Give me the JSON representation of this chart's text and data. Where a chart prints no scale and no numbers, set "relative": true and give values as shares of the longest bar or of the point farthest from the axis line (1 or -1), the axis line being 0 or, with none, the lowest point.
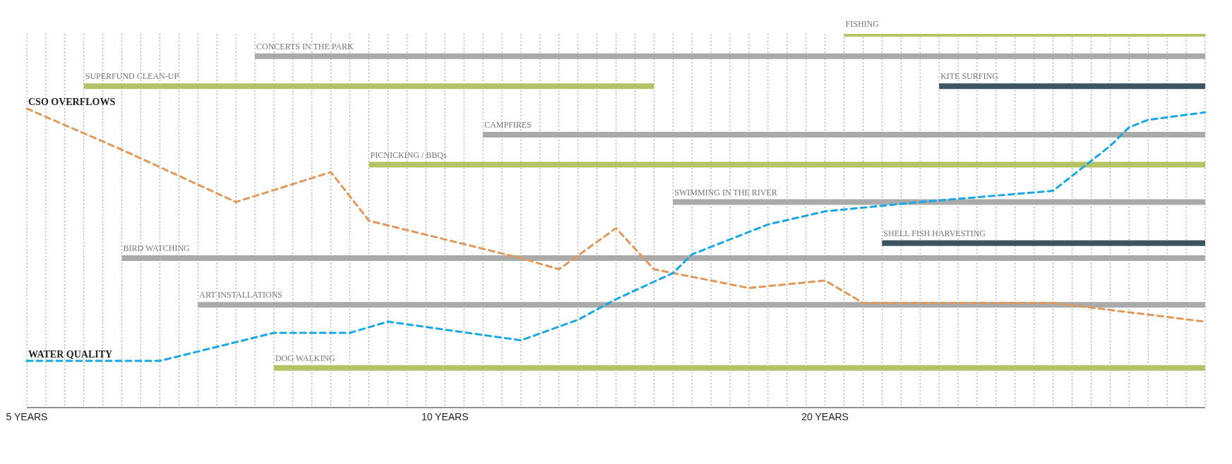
{
  "chart_data": {
    "type": "line",
    "relative": true,
    "grid": "x",
    "legend": false,
    "marker": "none",
    "tick_labels": "x",
    "categories": [
      "5 YEARS",
      null,
      null,
      null,
      null,
      null,
      null,
      null,
      null,
      null,
      null,
      null,
      null,
      null,
      null,
      null,
      null,
      null,
      null,
      null,
      null,
      null,
      "10 YEARS",
      null,
      null,
      null,
      null,
      null,
      null,
      null,
      null,
      null,
      null,
      null,
      null,
      null,
      null,
      null,
      null,
      null,
      null,
      null,
      "20 YEARS",
      null,
      null,
      null,
      null,
      null,
      null,
      null,
      null,
      null,
      null,
      null,
      null,
      null,
      null,
      null,
      null,
      null,
      null,
      null,
      null
    ],
    "series": [
      {
        "name": "FISHING",
        "color": "#b5c266",
        "line_style": "solid",
        "values": [
          null,
          null,
          null,
          null,
          null,
          null,
          null,
          null,
          null,
          null,
          null,
          null,
          null,
          null,
          null,
          null,
          null,
          null,
          null,
          null,
          null,
          null,
          null,
          null,
          null,
          null,
          null,
          null,
          null,
          null,
          null,
          null,
          null,
          null,
          null,
          null,
          null,
          null,
          null,
          null,
          null,
          null,
          null,
          1.0,
          null,
          null,
          null,
          null,
          null,
          null,
          null,
          null,
          null,
          null,
          null,
          null,
          null,
          null,
          null,
          null,
          null,
          null,
          1.0
        ]
      },
      {
        "name": "CONCERTS IN THE PARK",
        "color": "#aaaaaa",
        "line_style": "solid",
        "values": [
          null,
          null,
          null,
          null,
          null,
          null,
          null,
          null,
          null,
          null,
          null,
          null,
          0.94,
          null,
          null,
          null,
          null,
          null,
          null,
          null,
          null,
          null,
          null,
          null,
          null,
          null,
          null,
          null,
          null,
          null,
          null,
          null,
          null,
          null,
          null,
          null,
          null,
          null,
          null,
          null,
          null,
          null,
          null,
          null,
          null,
          null,
          null,
          null,
          null,
          null,
          null,
          null,
          null,
          null,
          null,
          null,
          null,
          null,
          null,
          null,
          null,
          null,
          0.94
        ]
      },
      {
        "name": "SUPERFUND CLEAN-UP",
        "color": "#b5c266",
        "line_style": "solid",
        "values": [
          null,
          null,
          null,
          0.86,
          null,
          null,
          null,
          null,
          null,
          null,
          null,
          null,
          null,
          null,
          null,
          null,
          null,
          null,
          null,
          null,
          null,
          null,
          null,
          null,
          null,
          null,
          null,
          null,
          null,
          null,
          null,
          null,
          null,
          0.86,
          null,
          null,
          null,
          null,
          null,
          null,
          null,
          null,
          null,
          null,
          null,
          null,
          null,
          null,
          null,
          null,
          null,
          null,
          null,
          null,
          null,
          null,
          null,
          null,
          null,
          null,
          null,
          null,
          null
        ]
      },
      {
        "name": "KITE SURFING",
        "color": "#3d5560",
        "line_style": "solid",
        "values": [
          null,
          null,
          null,
          null,
          null,
          null,
          null,
          null,
          null,
          null,
          null,
          null,
          null,
          null,
          null,
          null,
          null,
          null,
          null,
          null,
          null,
          null,
          null,
          null,
          null,
          null,
          null,
          null,
          null,
          null,
          null,
          null,
          null,
          null,
          null,
          null,
          null,
          null,
          null,
          null,
          null,
          null,
          null,
          null,
          null,
          null,
          null,
          null,
          0.86,
          null,
          null,
          null,
          null,
          null,
          null,
          null,
          null,
          null,
          null,
          null,
          null,
          null,
          0.86
        ]
      },
      {
        "name": "CAMPFIRES",
        "color": "#aaaaaa",
        "line_style": "solid",
        "values": [
          null,
          null,
          null,
          null,
          null,
          null,
          null,
          null,
          null,
          null,
          null,
          null,
          null,
          null,
          null,
          null,
          null,
          null,
          null,
          null,
          null,
          null,
          null,
          null,
          0.73,
          null,
          null,
          null,
          null,
          null,
          null,
          null,
          null,
          null,
          null,
          null,
          null,
          null,
          null,
          null,
          null,
          null,
          null,
          null,
          null,
          null,
          null,
          null,
          null,
          null,
          null,
          null,
          null,
          null,
          null,
          null,
          null,
          null,
          null,
          null,
          null,
          null,
          0.73
        ]
      },
      {
        "name": "PICNICKING / BBQs",
        "color": "#b5c266",
        "line_style": "solid",
        "values": [
          null,
          null,
          null,
          null,
          null,
          null,
          null,
          null,
          null,
          null,
          null,
          null,
          null,
          null,
          null,
          null,
          null,
          null,
          0.65,
          null,
          null,
          null,
          null,
          null,
          null,
          null,
          null,
          null,
          null,
          null,
          null,
          null,
          null,
          null,
          null,
          null,
          null,
          null,
          null,
          null,
          null,
          null,
          null,
          null,
          null,
          null,
          null,
          null,
          null,
          null,
          null,
          null,
          null,
          null,
          null,
          null,
          null,
          null,
          null,
          null,
          null,
          null,
          0.65
        ]
      },
      {
        "name": "SWIMMING IN THE RIVER",
        "color": "#aaaaaa",
        "line_style": "solid",
        "values": [
          null,
          null,
          null,
          null,
          null,
          null,
          null,
          null,
          null,
          null,
          null,
          null,
          null,
          null,
          null,
          null,
          null,
          null,
          null,
          null,
          null,
          null,
          null,
          null,
          null,
          null,
          null,
          null,
          null,
          null,
          null,
          null,
          null,
          null,
          0.55,
          null,
          null,
          null,
          null,
          null,
          null,
          null,
          null,
          null,
          null,
          null,
          null,
          null,
          null,
          null,
          null,
          null,
          null,
          null,
          null,
          null,
          null,
          null,
          null,
          null,
          null,
          null,
          0.55
        ]
      },
      {
        "name": "SHELL FISH HARVESTING",
        "color": "#3d5560",
        "line_style": "solid",
        "values": [
          null,
          null,
          null,
          null,
          null,
          null,
          null,
          null,
          null,
          null,
          null,
          null,
          null,
          null,
          null,
          null,
          null,
          null,
          null,
          null,
          null,
          null,
          null,
          null,
          null,
          null,
          null,
          null,
          null,
          null,
          null,
          null,
          null,
          null,
          null,
          null,
          null,
          null,
          null,
          null,
          null,
          null,
          null,
          null,
          null,
          0.44,
          null,
          null,
          null,
          null,
          null,
          null,
          null,
          null,
          null,
          null,
          null,
          null,
          null,
          null,
          null,
          null,
          0.44
        ]
      },
      {
        "name": "BIRD WATCHING",
        "color": "#aaaaaa",
        "line_style": "solid",
        "values": [
          null,
          null,
          null,
          null,
          null,
          0.4,
          null,
          null,
          null,
          null,
          null,
          null,
          null,
          null,
          null,
          null,
          null,
          null,
          null,
          null,
          null,
          null,
          null,
          null,
          null,
          null,
          null,
          null,
          null,
          null,
          null,
          null,
          null,
          null,
          null,
          null,
          null,
          null,
          null,
          null,
          null,
          null,
          null,
          null,
          null,
          null,
          null,
          null,
          null,
          null,
          null,
          null,
          null,
          null,
          null,
          null,
          null,
          null,
          null,
          null,
          null,
          null,
          0.4
        ]
      },
      {
        "name": "ART INSTALLATIONS",
        "color": "#aaaaaa",
        "line_style": "solid",
        "values": [
          null,
          null,
          null,
          null,
          null,
          null,
          null,
          null,
          null,
          0.275,
          null,
          null,
          null,
          null,
          null,
          null,
          null,
          null,
          null,
          null,
          null,
          null,
          null,
          null,
          null,
          null,
          null,
          null,
          null,
          null,
          null,
          null,
          null,
          null,
          null,
          null,
          null,
          null,
          null,
          null,
          null,
          null,
          null,
          null,
          null,
          null,
          null,
          null,
          null,
          null,
          null,
          null,
          null,
          null,
          null,
          null,
          null,
          null,
          null,
          null,
          null,
          null,
          0.275
        ]
      },
      {
        "name": "DOG WALKING",
        "color": "#b5c266",
        "line_style": "solid",
        "values": [
          null,
          null,
          null,
          null,
          null,
          null,
          null,
          null,
          null,
          null,
          null,
          null,
          null,
          0.106,
          null,
          null,
          null,
          null,
          null,
          null,
          null,
          null,
          null,
          null,
          null,
          null,
          null,
          null,
          null,
          null,
          null,
          null,
          null,
          null,
          null,
          null,
          null,
          null,
          null,
          null,
          null,
          null,
          null,
          null,
          null,
          null,
          null,
          null,
          null,
          null,
          null,
          null,
          null,
          null,
          null,
          null,
          null,
          null,
          null,
          null,
          null,
          null,
          0.106
        ]
      },
      {
        "name": "CSO OVERFLOWS",
        "color": "#e0995a",
        "line_style": "dashed",
        "values": [
          0.8,
          null,
          null,
          null,
          null,
          0.69,
          null,
          null,
          null,
          null,
          null,
          0.55,
          null,
          null,
          null,
          null,
          0.63,
          null,
          0.5,
          null,
          null,
          null,
          null,
          null,
          null,
          null,
          0.4,
          null,
          0.37,
          null,
          null,
          0.48,
          null,
          0.37,
          null,
          null,
          null,
          null,
          0.32,
          null,
          null,
          null,
          0.34,
          null,
          0.28,
          null,
          null,
          null,
          null,
          null,
          null,
          null,
          null,
          null,
          0.28,
          null,
          null,
          null,
          null,
          null,
          null,
          null,
          0.23
        ]
      },
      {
        "name": "WATER QUALITY",
        "color": "#1aa7e6",
        "line_style": "dashed",
        "values": [
          0.125,
          null,
          null,
          null,
          null,
          null,
          null,
          0.125,
          null,
          null,
          null,
          null,
          null,
          0.2,
          null,
          null,
          null,
          0.2,
          null,
          0.23,
          null,
          null,
          null,
          null,
          null,
          null,
          0.18,
          null,
          null,
          0.235,
          null,
          0.29,
          null,
          null,
          0.36,
          0.41,
          null,
          null,
          null,
          0.49,
          null,
          null,
          0.525,
          null,
          null,
          null,
          null,
          0.55,
          null,
          null,
          null,
          null,
          null,
          null,
          0.58,
          null,
          null,
          0.7,
          0.75,
          0.77,
          null,
          null,
          0.79
        ]
      }
    ]
  }
}
